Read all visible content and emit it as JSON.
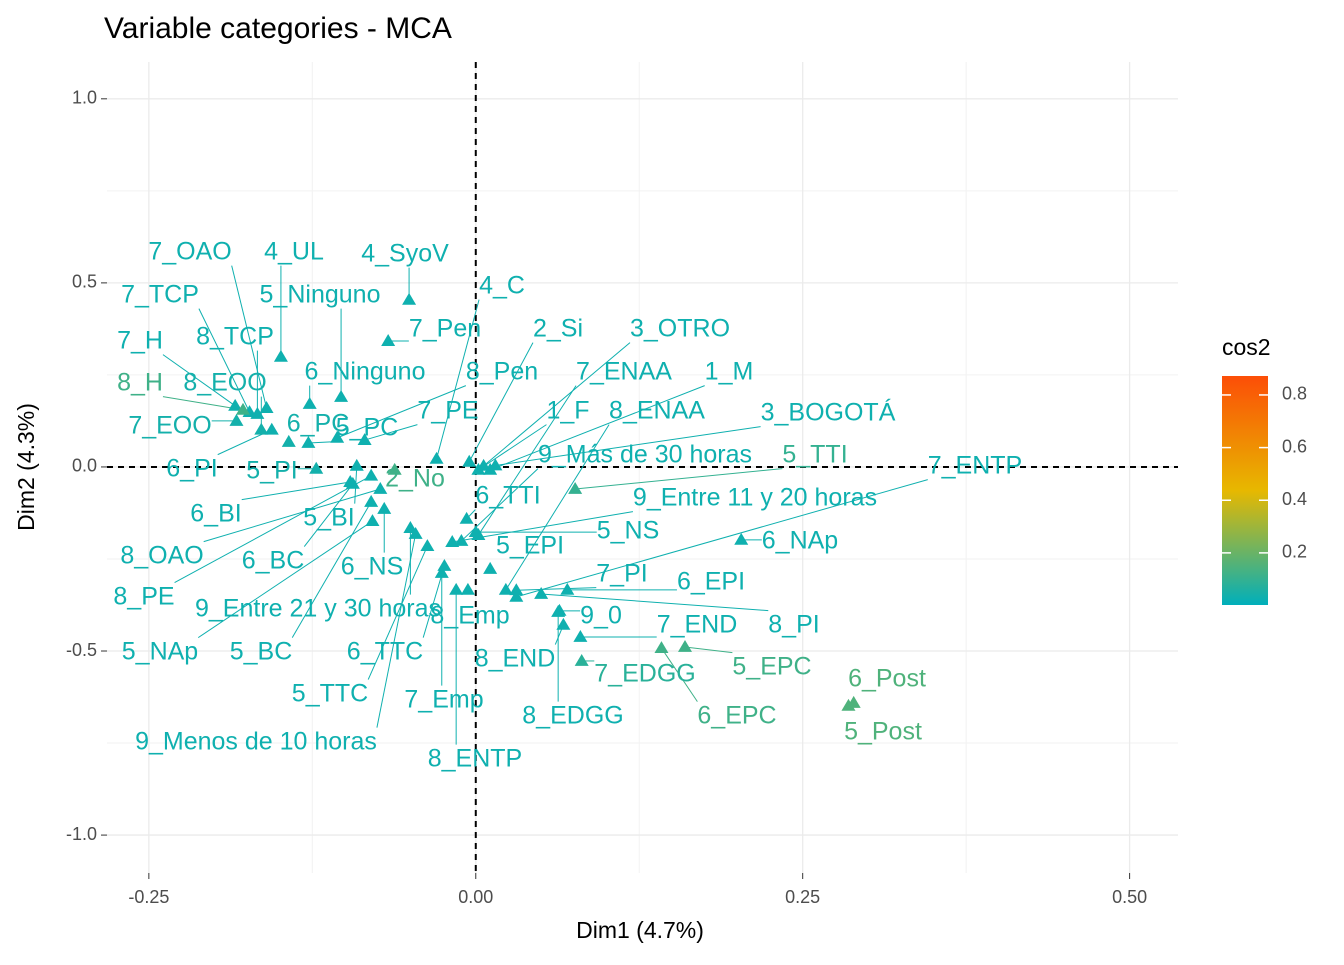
{
  "chart_data": {
    "type": "scatter",
    "title": "Variable categories - MCA",
    "x_label": "Dim1 (4.7%)",
    "y_label": "Dim2 (4.3%)",
    "xlim": [
      -0.282,
      0.537
    ],
    "ylim": [
      -1.103,
      1.1
    ],
    "xticks": [
      {
        "value": -0.25,
        "label": "-0.25"
      },
      {
        "value": 0,
        "label": "0.00"
      },
      {
        "value": 0.25,
        "label": "0.25"
      },
      {
        "value": 0.5,
        "label": "0.50"
      }
    ],
    "yticks": [
      {
        "value": -1,
        "label": "-1.0"
      },
      {
        "value": -0.5,
        "label": "-0.5"
      },
      {
        "value": 0,
        "label": "0.0"
      },
      {
        "value": 0.5,
        "label": "0.5"
      },
      {
        "value": 1,
        "label": "1.0"
      }
    ],
    "grid": true,
    "color_legend": {
      "title": "cos2",
      "clim": [
        0.002,
        0.872
      ],
      "colors": [
        "#00AFBB",
        "#E7B800",
        "#FC4E07"
      ],
      "ticks": [
        0.2,
        0.4,
        0.6,
        0.8
      ]
    },
    "labels": [
      "7_OAO",
      "4_UL",
      "4_SyoV",
      "7_TCP",
      "5_Ninguno",
      "4_C",
      "7_Pen",
      "2_Si",
      "3_OTRO",
      "8_TCP",
      "7_H",
      "6_Ninguno",
      "8_Pen",
      "7_ENAA",
      "1_M",
      "8_H",
      "8_EOO",
      "7_PE",
      "1_F",
      "8_ENAA",
      "3_BOGOTÁ",
      "7_EOO",
      "6_PC",
      "5_PC",
      "9_Más de 30 horas",
      "5_TTI",
      "7_ENTP",
      "6_PI",
      "5_PI",
      "2_No",
      "6_TTI",
      "9_Entre 11 y 20 horas",
      "6_BI",
      "5_BI",
      "5_NS",
      "5_EPI",
      "6_NAp",
      "8_OAO",
      "6_BC",
      "6_NS",
      "7_PI",
      "6_EPI",
      "8_PE",
      "9_Entre 21 y 30 horas",
      "8_Emp",
      "9_0",
      "7_END",
      "8_PI",
      "5_NAp",
      "5_BC",
      "6_TTC",
      "8_END",
      "5_EPC",
      "7_EDGG",
      "6_Post",
      "5_TTC",
      "7_Emp",
      "8_EDGG",
      "6_EPC",
      "5_Post",
      "9_Menos de 10 horas",
      "8_ENTP"
    ],
    "x": [
      -0.16,
      -0.149,
      -0.051,
      -0.173,
      -0.103,
      -0.03,
      -0.067,
      -0.005,
      0.006,
      -0.167,
      -0.184,
      -0.127,
      -0.106,
      0.002,
      0.011,
      -0.178,
      -0.164,
      -0.085,
      0.002,
      0.023,
      0.015,
      -0.183,
      -0.143,
      -0.128,
      -0.011,
      0.076,
      0.031,
      -0.156,
      -0.122,
      -0.062,
      -0.007,
      -0.018,
      -0.096,
      -0.091,
      0.0,
      0.011,
      0.203,
      -0.073,
      -0.094,
      -0.07,
      0.031,
      0.07,
      -0.08,
      -0.05,
      -0.006,
      0.064,
      0.08,
      0.05,
      -0.079,
      -0.08,
      -0.024,
      0.067,
      0.16,
      0.081,
      0.289,
      -0.037,
      -0.026,
      0.063,
      0.142,
      0.285,
      -0.046,
      -0.015
    ],
    "y": [
      0.16,
      0.299,
      0.454,
      0.149,
      0.19,
      0.022,
      0.342,
      0.014,
      0.003,
      0.144,
      0.166,
      0.171,
      0.079,
      -0.185,
      -0.008,
      0.155,
      0.101,
      0.073,
      -0.008,
      -0.334,
      0.004,
      0.125,
      0.068,
      0.065,
      -0.201,
      -0.06,
      -0.353,
      0.101,
      -0.005,
      -0.008,
      -0.141,
      -0.204,
      -0.041,
      0.003,
      -0.177,
      -0.277,
      -0.198,
      -0.06,
      -0.046,
      -0.114,
      -0.335,
      -0.334,
      -0.024,
      -0.166,
      -0.334,
      -0.391,
      -0.462,
      -0.345,
      -0.147,
      -0.095,
      -0.269,
      -0.429,
      -0.489,
      -0.527,
      -0.641,
      -0.215,
      -0.288,
      -0.394,
      -0.492,
      -0.649,
      -0.182,
      -0.334
    ],
    "cos2": [
      0.03,
      0.03,
      0.03,
      0.03,
      0.03,
      0.03,
      0.03,
      0.03,
      0.03,
      0.03,
      0.03,
      0.03,
      0.03,
      0.03,
      0.03,
      0.12,
      0.04,
      0.03,
      0.03,
      0.03,
      0.03,
      0.04,
      0.04,
      0.03,
      0.03,
      0.1,
      0.03,
      0.03,
      0.04,
      0.12,
      0.03,
      0.03,
      0.03,
      0.03,
      0.03,
      0.03,
      0.03,
      0.03,
      0.03,
      0.03,
      0.03,
      0.03,
      0.03,
      0.03,
      0.03,
      0.03,
      0.03,
      0.03,
      0.03,
      0.03,
      0.03,
      0.03,
      0.12,
      0.08,
      0.15,
      0.03,
      0.03,
      0.03,
      0.12,
      0.15,
      0.03,
      0.03
    ]
  }
}
